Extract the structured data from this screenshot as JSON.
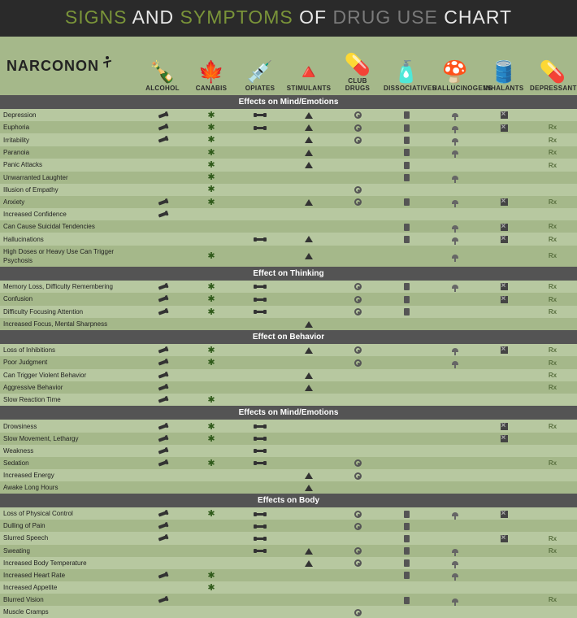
{
  "title_parts": [
    "SIGNS",
    "AND",
    "SYMPTOMS",
    "OF",
    "DRUG USE",
    "CHART"
  ],
  "fontsize": {
    "title": 23,
    "section": 10,
    "row": 8,
    "col_header": 8
  },
  "colors": {
    "header_bg": "#2a2a2a",
    "accent_green": "#7a9439",
    "text_light": "#e8e8e8",
    "text_grey": "#7a7a7a",
    "page_bg": "#a5b88a",
    "row_alt1": "#b7c8a0",
    "row_alt2": "#a5b88a",
    "section_bg": "#545454",
    "section_fg": "#ffffff"
  },
  "logo_text": "NARCONON",
  "drugs": [
    {
      "id": "alcohol",
      "label": "ALCOHOL",
      "emoji": "🍾"
    },
    {
      "id": "canabis",
      "label": "CANABIS",
      "emoji": "🍁"
    },
    {
      "id": "opiates",
      "label": "OPIATES",
      "emoji": "💉"
    },
    {
      "id": "stimulants",
      "label": "STIMULANTS",
      "emoji": "🔺"
    },
    {
      "id": "club",
      "label": "CLUB DRUGS",
      "emoji": "💊"
    },
    {
      "id": "dissoc",
      "label": "DISSOCIATIVES",
      "emoji": "🧴"
    },
    {
      "id": "halluc",
      "label": "HALLUCINOGENS",
      "emoji": "🍄"
    },
    {
      "id": "inhal",
      "label": "INHALANTS",
      "emoji": "🛢️"
    },
    {
      "id": "depress",
      "label": "DEPRESSANTS",
      "emoji": "💊"
    }
  ],
  "sections": [
    {
      "title": "Effects on Mind/Emotions",
      "rows": [
        {
          "label": "Depression",
          "m": [
            1,
            1,
            1,
            1,
            1,
            1,
            1,
            1,
            0
          ]
        },
        {
          "label": "Euphoria",
          "m": [
            1,
            1,
            1,
            1,
            1,
            1,
            1,
            1,
            1
          ]
        },
        {
          "label": "Irritability",
          "m": [
            1,
            1,
            0,
            1,
            1,
            1,
            1,
            0,
            1
          ]
        },
        {
          "label": "Paranoia",
          "m": [
            0,
            1,
            0,
            1,
            0,
            1,
            1,
            0,
            1
          ]
        },
        {
          "label": "Panic Attacks",
          "m": [
            0,
            1,
            0,
            1,
            0,
            1,
            0,
            0,
            1
          ]
        },
        {
          "label": "Unwarranted Laughter",
          "m": [
            0,
            1,
            0,
            0,
            0,
            1,
            1,
            0,
            0
          ]
        },
        {
          "label": "Illusion of Empathy",
          "m": [
            0,
            1,
            0,
            0,
            1,
            0,
            0,
            0,
            0
          ]
        },
        {
          "label": "Anxiety",
          "m": [
            1,
            1,
            0,
            1,
            1,
            1,
            1,
            1,
            1
          ]
        },
        {
          "label": "Increased Confidence",
          "m": [
            1,
            0,
            0,
            0,
            0,
            0,
            0,
            0,
            0
          ]
        },
        {
          "label": "Can Cause Suicidal Tendencies",
          "m": [
            0,
            0,
            0,
            0,
            0,
            1,
            1,
            1,
            1
          ]
        },
        {
          "label": "Hallucinations",
          "m": [
            0,
            0,
            1,
            1,
            0,
            1,
            1,
            1,
            1
          ]
        },
        {
          "label": "High Doses or Heavy Use Can Trigger Psychosis",
          "m": [
            0,
            1,
            0,
            1,
            0,
            0,
            1,
            0,
            1
          ]
        }
      ]
    },
    {
      "title": "Effect on Thinking",
      "rows": [
        {
          "label": "Memory Loss, Difficulty Remembering",
          "m": [
            1,
            1,
            1,
            0,
            1,
            1,
            1,
            1,
            1
          ]
        },
        {
          "label": "Confusion",
          "m": [
            1,
            1,
            1,
            0,
            1,
            1,
            0,
            1,
            1
          ]
        },
        {
          "label": "Difficulty Focusing Attention",
          "m": [
            1,
            1,
            1,
            0,
            1,
            1,
            0,
            0,
            1
          ]
        },
        {
          "label": "Increased Focus, Mental Sharpness",
          "m": [
            0,
            0,
            0,
            1,
            0,
            0,
            0,
            0,
            0
          ]
        }
      ]
    },
    {
      "title": "Effect on Behavior",
      "rows": [
        {
          "label": "Loss of Inhibitions",
          "m": [
            1,
            1,
            0,
            1,
            1,
            0,
            1,
            1,
            1
          ]
        },
        {
          "label": "Poor Judgment",
          "m": [
            1,
            1,
            0,
            0,
            1,
            0,
            1,
            0,
            1
          ]
        },
        {
          "label": "Can Trigger Violent Behavior",
          "m": [
            1,
            0,
            0,
            1,
            0,
            0,
            0,
            0,
            1
          ]
        },
        {
          "label": "Aggressive Behavior",
          "m": [
            1,
            0,
            0,
            1,
            0,
            0,
            0,
            0,
            1
          ]
        },
        {
          "label": "Slow Reaction Time",
          "m": [
            1,
            1,
            0,
            0,
            0,
            0,
            0,
            0,
            0
          ]
        }
      ]
    },
    {
      "title": "Effects on Mind/Emotions",
      "rows": [
        {
          "label": "Drowsiness",
          "m": [
            1,
            1,
            1,
            0,
            0,
            0,
            0,
            1,
            1
          ]
        },
        {
          "label": "Slow Movement, Lethargy",
          "m": [
            1,
            1,
            1,
            0,
            0,
            0,
            0,
            1,
            0
          ]
        },
        {
          "label": "Weakness",
          "m": [
            1,
            0,
            1,
            0,
            0,
            0,
            0,
            0,
            0
          ]
        },
        {
          "label": "Sedation",
          "m": [
            1,
            1,
            1,
            0,
            1,
            0,
            0,
            0,
            1
          ]
        },
        {
          "label": "Increased Energy",
          "m": [
            0,
            0,
            0,
            1,
            1,
            0,
            0,
            0,
            0
          ]
        },
        {
          "label": "Awake Long Hours",
          "m": [
            0,
            0,
            0,
            1,
            0,
            0,
            0,
            0,
            0
          ]
        }
      ]
    },
    {
      "title": "Effects on Body",
      "rows": [
        {
          "label": "Loss of Physical Control",
          "m": [
            1,
            1,
            1,
            0,
            1,
            1,
            1,
            1,
            0
          ]
        },
        {
          "label": "Dulling of Pain",
          "m": [
            1,
            0,
            1,
            0,
            1,
            1,
            0,
            0,
            0
          ]
        },
        {
          "label": "Slurred Speech",
          "m": [
            1,
            0,
            1,
            0,
            0,
            1,
            0,
            1,
            1
          ]
        },
        {
          "label": "Sweating",
          "m": [
            0,
            0,
            1,
            1,
            1,
            1,
            1,
            0,
            1
          ]
        },
        {
          "label": "Increased Body Temperature",
          "m": [
            0,
            0,
            0,
            1,
            1,
            1,
            1,
            0,
            0
          ]
        },
        {
          "label": "Increased Heart Rate",
          "m": [
            1,
            1,
            0,
            0,
            0,
            1,
            1,
            0,
            0
          ]
        },
        {
          "label": "Increased Appetite",
          "m": [
            0,
            1,
            0,
            0,
            0,
            0,
            0,
            0,
            0
          ]
        },
        {
          "label": "Blurred Vision",
          "m": [
            1,
            0,
            0,
            0,
            0,
            1,
            1,
            0,
            1
          ]
        },
        {
          "label": "Muscle Cramps",
          "m": [
            0,
            0,
            0,
            0,
            1,
            0,
            0,
            0,
            0
          ]
        }
      ]
    }
  ]
}
